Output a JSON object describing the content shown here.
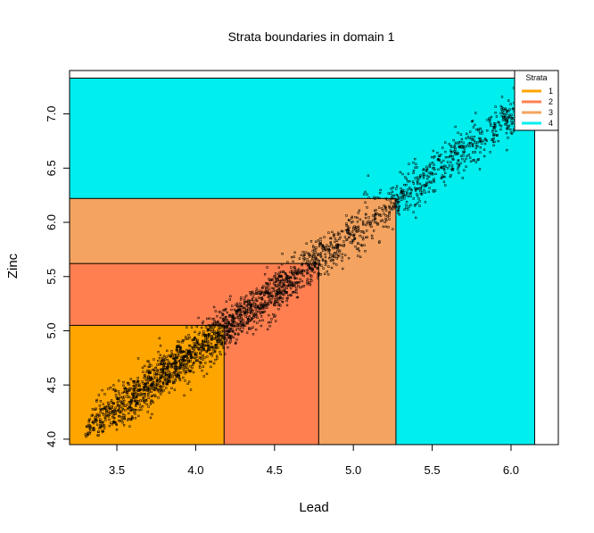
{
  "chart_data": {
    "type": "scatter",
    "title": "Strata boundaries in domain 1",
    "xlabel": "Lead",
    "ylabel": "Zinc",
    "xlim": [
      3.2,
      6.3
    ],
    "ylim": [
      3.95,
      7.4
    ],
    "x_ticks": [
      "3.5",
      "4.0",
      "4.5",
      "5.0",
      "5.5",
      "6.0"
    ],
    "y_ticks": [
      "4.0",
      "4.5",
      "5.0",
      "5.5",
      "6.0",
      "6.5",
      "7.0"
    ],
    "strata": [
      {
        "label": "1",
        "color": "#FFA500",
        "x_max": 4.18,
        "y_max": 5.05
      },
      {
        "label": "2",
        "color": "#FF7F50",
        "x_max": 4.78,
        "y_max": 5.62
      },
      {
        "label": "3",
        "color": "#F4A460",
        "x_max": 5.27,
        "y_max": 6.22
      },
      {
        "label": "4",
        "color": "#00EEEE",
        "x_max": 6.15,
        "y_max": 7.33
      }
    ],
    "legend": {
      "title": "Strata",
      "position": "top-right"
    },
    "points": {
      "count": 2500,
      "x_range": [
        3.3,
        6.15
      ],
      "trend": "zinc ≈ 1.08 × lead + 0.5 with scatter of about ±0.12"
    }
  }
}
